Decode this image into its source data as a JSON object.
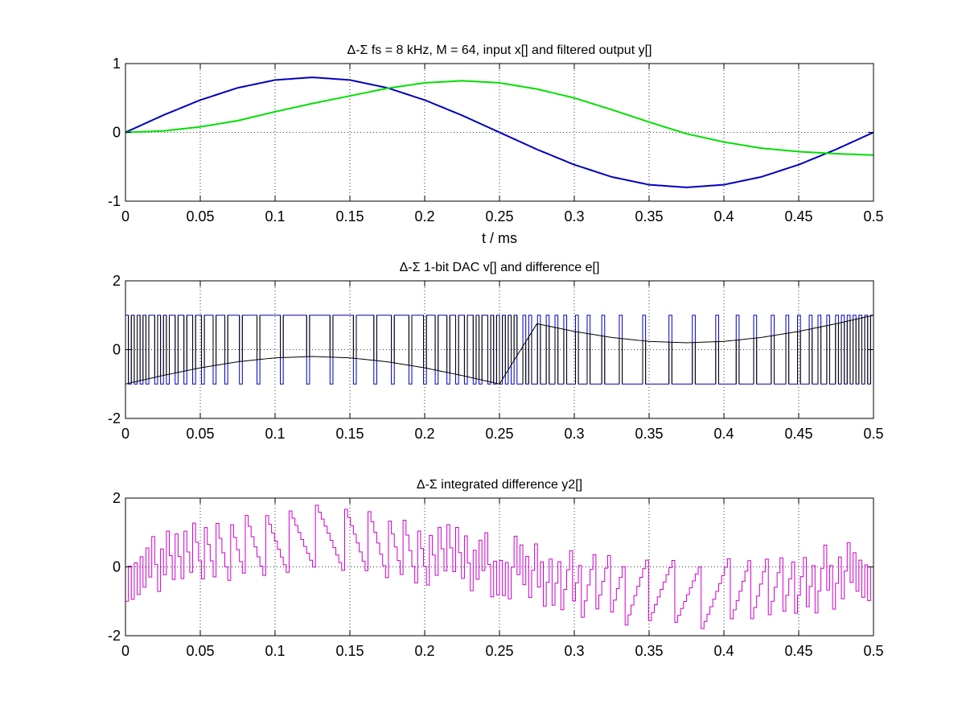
{
  "chart_data": [
    {
      "type": "line",
      "title": "Δ-Σ fs = 8 kHz, M = 64, input x[] and filtered output y[]",
      "xlabel": "t / ms",
      "ylabel": "",
      "xlim": [
        0,
        0.5
      ],
      "ylim": [
        -1,
        1
      ],
      "xticks": [
        0,
        0.05,
        0.1,
        0.15,
        0.2,
        0.25,
        0.3,
        0.35,
        0.4,
        0.45,
        0.5
      ],
      "xtick_labels": [
        "0",
        "0.05",
        "0.1",
        "0.15",
        "0.2",
        "0.25",
        "0.3",
        "0.35",
        "0.4",
        "0.45",
        "0.5"
      ],
      "yticks": [
        -1,
        0,
        1
      ],
      "ytick_labels": [
        "-1",
        "0",
        "1"
      ],
      "grid": true,
      "series": [
        {
          "color": "#0000c0",
          "x": [
            0,
            0.025,
            0.05,
            0.075,
            0.1,
            0.125,
            0.15,
            0.175,
            0.2,
            0.225,
            0.25,
            0.275,
            0.3,
            0.325,
            0.35,
            0.375,
            0.4,
            0.425,
            0.45,
            0.475,
            0.5
          ],
          "y": [
            0,
            0.247,
            0.47,
            0.647,
            0.761,
            0.8,
            0.761,
            0.647,
            0.47,
            0.247,
            0,
            -0.247,
            -0.47,
            -0.647,
            -0.761,
            -0.8,
            -0.761,
            -0.647,
            -0.47,
            -0.247,
            0
          ]
        },
        {
          "color": "#00e000",
          "x": [
            0,
            0.025,
            0.05,
            0.075,
            0.1,
            0.125,
            0.15,
            0.175,
            0.2,
            0.225,
            0.25,
            0.275,
            0.3,
            0.325,
            0.35,
            0.375,
            0.4,
            0.425,
            0.45,
            0.475,
            0.5
          ],
          "y": [
            0,
            0.02,
            0.08,
            0.17,
            0.3,
            0.42,
            0.53,
            0.64,
            0.72,
            0.75,
            0.72,
            0.63,
            0.5,
            0.33,
            0.15,
            -0.02,
            -0.14,
            -0.23,
            -0.28,
            -0.31,
            -0.33
          ]
        }
      ]
    },
    {
      "type": "line",
      "title": "Δ-Σ 1-bit DAC v[] and difference e[]",
      "xlabel": "",
      "ylabel": "",
      "xlim": [
        0,
        0.5
      ],
      "ylim": [
        -2,
        2
      ],
      "xticks": [
        0,
        0.05,
        0.1,
        0.15,
        0.2,
        0.25,
        0.3,
        0.35,
        0.4,
        0.45,
        0.5
      ],
      "xtick_labels": [
        "0",
        "0.05",
        "0.1",
        "0.15",
        "0.2",
        "0.25",
        "0.3",
        "0.35",
        "0.4",
        "0.45",
        "0.5"
      ],
      "yticks": [
        -2,
        0,
        2
      ],
      "ytick_labels": [
        "-2",
        "0",
        "2"
      ],
      "grid": true,
      "series": [
        {
          "color": "#0000c0",
          "step": true,
          "sample_period": 0.001953125,
          "values": [
            1,
            -1,
            1,
            -1,
            1,
            -1,
            1,
            -1,
            1,
            1,
            -1,
            1,
            -1,
            1,
            -1,
            1,
            1,
            -1,
            1,
            1,
            -1,
            1,
            1,
            -1,
            1,
            1,
            -1,
            1,
            1,
            1,
            -1,
            1,
            1,
            1,
            -1,
            1,
            1,
            1,
            1,
            -1,
            1,
            1,
            1,
            1,
            1,
            -1,
            1,
            1,
            1,
            1,
            1,
            1,
            1,
            -1,
            1,
            1,
            1,
            1,
            1,
            1,
            1,
            1,
            -1,
            1,
            1,
            1,
            1,
            1,
            1,
            1,
            -1,
            1,
            1,
            1,
            1,
            1,
            1,
            1,
            -1,
            1,
            1,
            1,
            1,
            1,
            1,
            -1,
            1,
            1,
            1,
            1,
            1,
            -1,
            1,
            1,
            1,
            1,
            1,
            -1,
            1,
            1,
            1,
            1,
            -1,
            1,
            1,
            1,
            -1,
            1,
            1,
            1,
            -1,
            1,
            1,
            -1,
            1,
            1,
            -1,
            1,
            1,
            -1,
            1,
            -1,
            1,
            1,
            -1,
            1,
            -1,
            1,
            -1,
            1,
            -1,
            1,
            -1,
            1,
            -1,
            -1,
            1,
            -1,
            1,
            -1,
            -1,
            1,
            -1,
            -1,
            1,
            -1,
            -1,
            1,
            -1,
            -1,
            1,
            -1,
            -1,
            -1,
            1,
            -1,
            -1,
            -1,
            1,
            -1,
            -1,
            -1,
            -1,
            1,
            -1,
            -1,
            -1,
            -1,
            -1,
            1,
            -1,
            -1,
            -1,
            -1,
            -1,
            -1,
            -1,
            1,
            -1,
            -1,
            -1,
            -1,
            -1,
            -1,
            -1,
            -1,
            1,
            -1,
            -1,
            -1,
            -1,
            -1,
            -1,
            -1,
            1,
            -1,
            -1,
            -1,
            -1,
            -1,
            -1,
            -1,
            1,
            -1,
            -1,
            -1,
            -1,
            -1,
            -1,
            1,
            -1,
            -1,
            -1,
            -1,
            -1,
            1,
            -1,
            -1,
            -1,
            -1,
            -1,
            1,
            -1,
            -1,
            -1,
            -1,
            1,
            -1,
            -1,
            -1,
            1,
            -1,
            -1,
            -1,
            1,
            -1,
            -1,
            1,
            -1,
            -1,
            1,
            -1,
            -1,
            1,
            -1,
            1,
            -1,
            1,
            -1,
            1,
            -1,
            1,
            -1,
            1,
            -1,
            1
          ]
        },
        {
          "color": "#000000",
          "x": [
            0,
            0.025,
            0.05,
            0.075,
            0.1,
            0.125,
            0.15,
            0.175,
            0.2,
            0.225,
            0.25,
            0.275,
            0.3,
            0.325,
            0.35,
            0.375,
            0.4,
            0.425,
            0.45,
            0.475,
            0.5
          ],
          "y": [
            -1,
            -0.753,
            -0.53,
            -0.353,
            -0.239,
            -0.2,
            -0.239,
            -0.353,
            -0.53,
            -0.753,
            -1,
            0.753,
            0.53,
            0.353,
            0.239,
            0.2,
            0.239,
            0.353,
            0.53,
            0.753,
            1
          ],
          "spike_envelope": true
        }
      ]
    },
    {
      "type": "line",
      "title": "Δ-Σ integrated difference y2[]",
      "xlabel": "",
      "ylabel": "",
      "xlim": [
        0,
        0.5
      ],
      "ylim": [
        -2,
        2
      ],
      "xticks": [
        0,
        0.05,
        0.1,
        0.15,
        0.2,
        0.25,
        0.3,
        0.35,
        0.4,
        0.45,
        0.5
      ],
      "xtick_labels": [
        "0",
        "0.05",
        "0.1",
        "0.15",
        "0.2",
        "0.25",
        "0.3",
        "0.35",
        "0.4",
        "0.45",
        "0.5"
      ],
      "yticks": [
        -2,
        0,
        2
      ],
      "ytick_labels": [
        "-2",
        "0",
        "2"
      ],
      "grid": true,
      "series": [
        {
          "color": "#d000d0",
          "step": true,
          "sample_period": 0.001953125,
          "input_frequency_khz": 2,
          "input_amplitude": 0.8
        }
      ]
    }
  ]
}
